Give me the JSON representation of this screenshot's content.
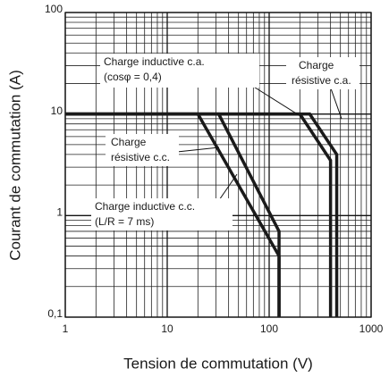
{
  "chart_data": {
    "type": "line",
    "xlabel": "Tension de commutation (V)",
    "ylabel": "Courant de commutation (A)",
    "xscale": "log",
    "yscale": "log",
    "xlim": [
      1,
      1000
    ],
    "ylim": [
      0.1,
      100
    ],
    "xticks": [
      1,
      10,
      100,
      1000
    ],
    "yticks": [
      {
        "value": 0.1,
        "label": "0,1"
      },
      1,
      10,
      100
    ],
    "grid": true,
    "minor_grid": true,
    "series": [
      {
        "name": [
          "Charge inductive c.a.",
          "(cosφ = 0,4)"
        ],
        "color": "#1a1a1a",
        "x": [
          1,
          200,
          400,
          400
        ],
        "values": [
          10,
          10,
          3.5,
          0.1
        ]
      },
      {
        "name": [
          "Charge",
          "résistive c.a."
        ],
        "color": "#1a1a1a",
        "x": [
          1,
          250,
          460,
          460
        ],
        "values": [
          10,
          10,
          4,
          0.1
        ]
      },
      {
        "name": [
          "Charge",
          "résistive c.c."
        ],
        "color": "#1a1a1a",
        "x": [
          1,
          32,
          125,
          125
        ],
        "values": [
          10,
          10,
          0.7,
          0.1
        ]
      },
      {
        "name": [
          "Charge inductive c.c.",
          "(L/R = 7 ms)"
        ],
        "color": "#1a1a1a",
        "x": [
          1,
          20,
          125,
          125
        ],
        "values": [
          10,
          10,
          0.4,
          0.1
        ]
      }
    ]
  }
}
